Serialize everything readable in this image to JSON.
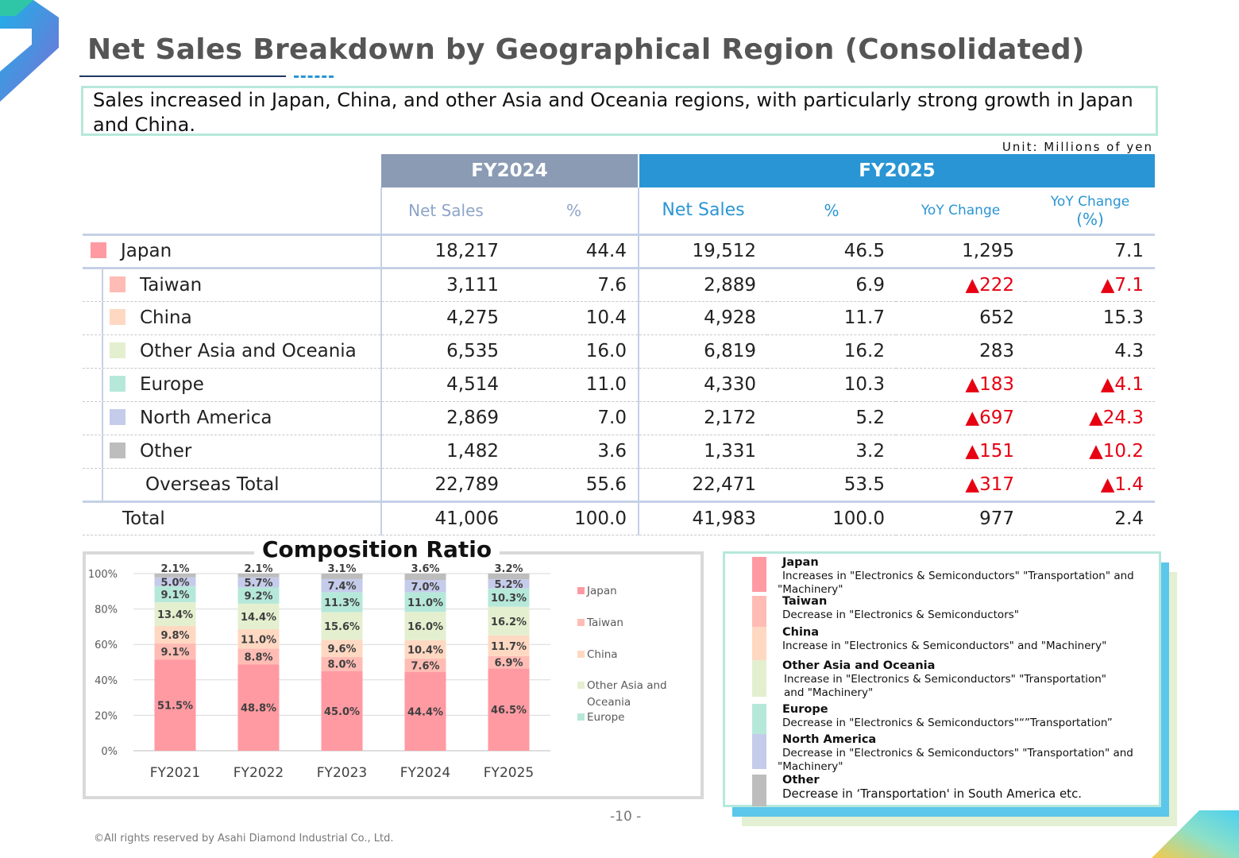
{
  "title": "Net Sales Breakdown by Geographical Region (Consolidated)",
  "summary": "Sales increased in Japan, China, and other Asia and Oceania regions, with particularly strong growth in Japan and China.",
  "unit": "Unit: Millions of yen",
  "table": {
    "fy2024": "FY2024",
    "fy2025": "FY2025",
    "col_net_sales": "Net Sales",
    "col_pct": "%",
    "col_yoy": "YoY Change",
    "col_yoy_pct_1": "YoY Change",
    "col_yoy_pct_2": "(%)",
    "rows": [
      {
        "label": "Japan",
        "color": "#ff9aa2",
        "fy24_sales": "18,217",
        "fy24_pct": "44.4",
        "fy25_sales": "19,512",
        "fy25_pct": "46.5",
        "yoy": "1,295",
        "yoy_pct": "7.1"
      },
      {
        "label": "Taiwan",
        "color": "#ffbcb4",
        "fy24_sales": "3,111",
        "fy24_pct": "7.6",
        "fy25_sales": "2,889",
        "fy25_pct": "6.9",
        "yoy": "▲222",
        "yoy_pct": "▲7.1"
      },
      {
        "label": "China",
        "color": "#ffd8c2",
        "fy24_sales": "4,275",
        "fy24_pct": "10.4",
        "fy25_sales": "4,928",
        "fy25_pct": "11.7",
        "yoy": "652",
        "yoy_pct": "15.3"
      },
      {
        "label": "Other Asia and Oceania",
        "color": "#e4efcf",
        "fy24_sales": "6,535",
        "fy24_pct": "16.0",
        "fy25_sales": "6,819",
        "fy25_pct": "16.2",
        "yoy": "283",
        "yoy_pct": "4.3"
      },
      {
        "label": "Europe",
        "color": "#b6e8da",
        "fy24_sales": "4,514",
        "fy24_pct": "11.0",
        "fy25_sales": "4,330",
        "fy25_pct": "10.3",
        "yoy": "▲183",
        "yoy_pct": "▲4.1"
      },
      {
        "label": "North America",
        "color": "#c5cbea",
        "fy24_sales": "2,869",
        "fy24_pct": "7.0",
        "fy25_sales": "2,172",
        "fy25_pct": "5.2",
        "yoy": "▲697",
        "yoy_pct": "▲24.3"
      },
      {
        "label": "Other",
        "color": "#bdbdbd",
        "fy24_sales": "1,482",
        "fy24_pct": "3.6",
        "fy25_sales": "1,331",
        "fy25_pct": "3.2",
        "yoy": "▲151",
        "yoy_pct": "▲10.2"
      },
      {
        "label": "Overseas Total",
        "fy24_sales": "22,789",
        "fy24_pct": "55.6",
        "fy25_sales": "22,471",
        "fy25_pct": "53.5",
        "yoy": "▲317",
        "yoy_pct": "▲1.4"
      },
      {
        "label": "Total",
        "fy24_sales": "41,006",
        "fy24_pct": "100.0",
        "fy25_sales": "41,983",
        "fy25_pct": "100.0",
        "yoy": "977",
        "yoy_pct": "2.4"
      }
    ]
  },
  "chart_data": {
    "type": "bar",
    "stacked": true,
    "title": "Composition Ratio",
    "categories": [
      "FY2021",
      "FY2022",
      "FY2023",
      "FY2024",
      "FY2025"
    ],
    "yticks": [
      "0%",
      "20%",
      "40%",
      "60%",
      "80%",
      "100%"
    ],
    "ylim": [
      0,
      100
    ],
    "series": [
      {
        "name": "Japan",
        "color": "#ff9aa2",
        "values": [
          51.5,
          48.8,
          45.0,
          44.4,
          46.5
        ],
        "labels": [
          "51.5%",
          "48.8%",
          "45.0%",
          "44.4%",
          "46.5%"
        ]
      },
      {
        "name": "Taiwan",
        "color": "#ffbcb4",
        "values": [
          9.1,
          8.8,
          8.0,
          7.6,
          6.9
        ],
        "labels": [
          "9.1%",
          "8.8%",
          "8.0%",
          "7.6%",
          "6.9%"
        ]
      },
      {
        "name": "China",
        "color": "#ffd8c2",
        "values": [
          9.8,
          11.0,
          9.6,
          10.4,
          11.7
        ],
        "labels": [
          "9.8%",
          "11.0%",
          "9.6%",
          "10.4%",
          "11.7%"
        ]
      },
      {
        "name": "Other Asia and Oceania",
        "color": "#e4efcf",
        "values": [
          13.4,
          14.4,
          15.6,
          16.0,
          16.2
        ],
        "labels": [
          "13.4%",
          "14.4%",
          "15.6%",
          "16.0%",
          "16.2%"
        ]
      },
      {
        "name": "Europe",
        "color": "#b6e8da",
        "values": [
          9.1,
          9.2,
          11.3,
          11.0,
          10.3
        ],
        "labels": [
          "9.1%",
          "9.2%",
          "11.3%",
          "11.0%",
          "10.3%"
        ]
      },
      {
        "name": "North America",
        "color": "#c5cbea",
        "values": [
          5.0,
          5.7,
          7.4,
          7.0,
          5.2
        ],
        "labels": [
          "5.0%",
          "5.7%",
          "7.4%",
          "7.0%",
          "5.2%"
        ]
      },
      {
        "name": "Other",
        "color": "#bdbdbd",
        "values": [
          2.1,
          2.1,
          3.1,
          3.6,
          3.2
        ],
        "labels": [
          "2.1%",
          "2.1%",
          "3.1%",
          "3.6%",
          "3.2%"
        ]
      }
    ],
    "legend_lines": [
      "Japan",
      "Taiwan",
      "China",
      "Other Asia and",
      "Oceania",
      "Europe"
    ]
  },
  "notes": [
    {
      "head": "Japan",
      "lines": [
        "Increases in \"Electronics & Semiconductors\" \"Transportation\" and",
        "\"Machinery\""
      ],
      "color": "#ff9aa2"
    },
    {
      "head": "Taiwan",
      "lines": [
        "Decrease in \"Electronics & Semiconductors\""
      ],
      "color": "#ffbcb4"
    },
    {
      "head": "China",
      "lines": [
        "Increase in \"Electronics & Semiconductors\" and \"Machinery\""
      ],
      "color": "#ffd8c2"
    },
    {
      "head": "Other Asia and Oceania",
      "lines": [
        "Increase in \"Electronics & Semiconductors\" \"Transportation\"",
        "and \"Machinery\""
      ],
      "color": "#e4efcf"
    },
    {
      "head": "Europe",
      "lines": [
        "Decrease in \"Electronics & Semiconductors\"“”Transportation”"
      ],
      "color": "#b6e8da"
    },
    {
      "head": "North America",
      "lines": [
        "Decrease in \"Electronics & Semiconductors\" \"Transportation\" and",
        "\"Machinery\""
      ],
      "color": "#c5cbea"
    },
    {
      "head": "Other",
      "lines": [
        "Decrease in ‘Transportation' in South America etc."
      ],
      "color": "#bdbdbd"
    }
  ],
  "page_number": "-10 -",
  "copyright": "©All rights reserved by Asahi Diamond Industrial Co., Ltd."
}
